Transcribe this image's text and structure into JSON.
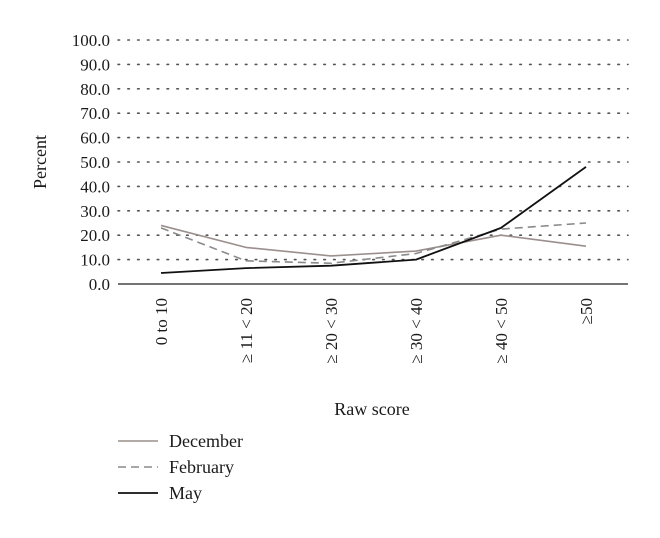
{
  "chart_data": {
    "type": "line",
    "categories": [
      "0 to 10",
      "≥ 11 < 20",
      "≥ 20 < 30",
      "≥ 30 < 40",
      "≥ 40 < 50",
      "≥50"
    ],
    "series": [
      {
        "name": "December",
        "values": [
          24.0,
          15.0,
          11.5,
          13.5,
          20.0,
          15.5
        ],
        "color": "#9a8f8c",
        "dash": "solid"
      },
      {
        "name": "February",
        "values": [
          23.0,
          9.5,
          8.5,
          12.5,
          22.5,
          25.0
        ],
        "color": "#8a8a8a",
        "dash": "dashed"
      },
      {
        "name": "May",
        "values": [
          4.5,
          6.5,
          7.5,
          10.0,
          23.0,
          48.0
        ],
        "color": "#111111",
        "dash": "solid"
      }
    ],
    "yticks": [
      "0.0",
      "10.0",
      "20.0",
      "30.0",
      "40.0",
      "50.0",
      "60.0",
      "70.0",
      "80.0",
      "90.0",
      "100.0"
    ],
    "ylim": [
      0,
      100
    ],
    "xlabel": "Raw score",
    "ylabel": "Percent",
    "grid": "horizontal-dotted",
    "legend_position": "bottom-left"
  }
}
